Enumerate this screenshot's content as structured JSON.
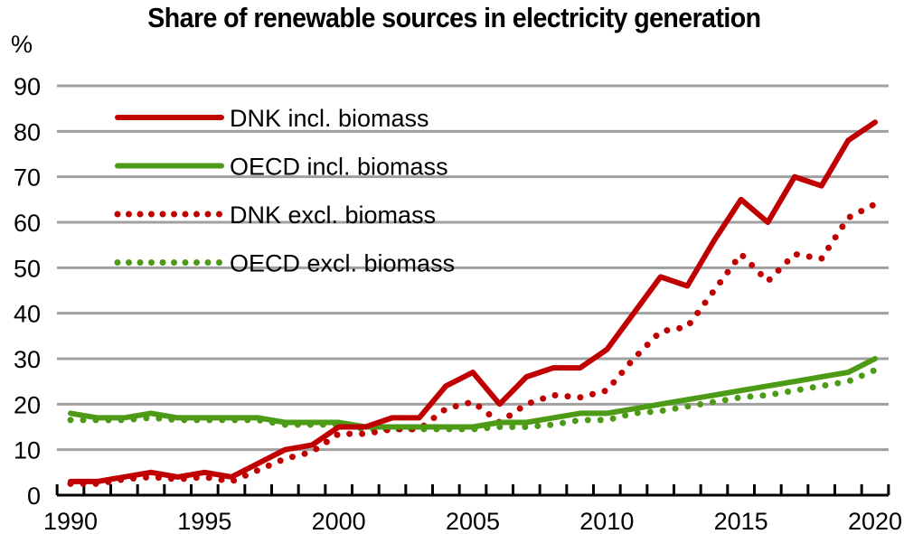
{
  "chart_data": {
    "type": "line",
    "title": "Share of renewable sources in electricity generation",
    "ylabel": "%",
    "xlabel": "",
    "ylim": [
      0,
      90
    ],
    "yticks": [
      0,
      10,
      20,
      30,
      40,
      50,
      60,
      70,
      80,
      90
    ],
    "xticks": [
      1990,
      1995,
      2000,
      2005,
      2010,
      2015,
      2020
    ],
    "xlim": [
      1990,
      2020
    ],
    "grid": true,
    "legend_position": "top-left",
    "x": [
      1990,
      1991,
      1992,
      1993,
      1994,
      1995,
      1996,
      1997,
      1998,
      1999,
      2000,
      2001,
      2002,
      2003,
      2004,
      2005,
      2006,
      2007,
      2008,
      2009,
      2010,
      2011,
      2012,
      2013,
      2014,
      2015,
      2016,
      2017,
      2018,
      2019,
      2020
    ],
    "series": [
      {
        "name": "DNK incl. biomass",
        "style": "solid",
        "color": "#c00000",
        "values": [
          3,
          3,
          4,
          5,
          4,
          5,
          4,
          7,
          10,
          11,
          15,
          15,
          17,
          17,
          24,
          27,
          20,
          26,
          28,
          28,
          32,
          40,
          48,
          46,
          56,
          65,
          60,
          70,
          68,
          78,
          82
        ]
      },
      {
        "name": "OECD incl. biomass",
        "style": "solid",
        "color": "#4d9a17",
        "values": [
          18,
          17,
          17,
          18,
          17,
          17,
          17,
          17,
          16,
          16,
          16,
          15,
          15,
          15,
          15,
          15,
          16,
          16,
          17,
          18,
          18,
          19,
          20,
          21,
          22,
          23,
          24,
          25,
          26,
          27,
          30
        ]
      },
      {
        "name": "DNK excl. biomass",
        "style": "dotted",
        "color": "#c00000",
        "values": [
          2.5,
          2.5,
          3.5,
          4,
          3.5,
          4,
          3,
          5.5,
          8,
          9.5,
          13.5,
          13.5,
          14.5,
          14.5,
          19,
          20.5,
          16,
          20,
          22,
          21.5,
          23,
          30,
          36,
          37,
          45,
          53,
          47,
          53,
          52,
          61,
          64
        ]
      },
      {
        "name": "OECD excl. biomass",
        "style": "dotted",
        "color": "#4d9a17",
        "values": [
          16.5,
          16.5,
          16.5,
          17,
          16.5,
          16.5,
          16.5,
          16.5,
          15.5,
          15.5,
          15.5,
          14.5,
          14.5,
          14.5,
          14.5,
          14.5,
          15,
          15,
          15.5,
          16.5,
          16.5,
          18,
          18.5,
          19.5,
          20.5,
          21.5,
          22,
          23,
          24,
          25,
          27.5
        ]
      }
    ]
  }
}
